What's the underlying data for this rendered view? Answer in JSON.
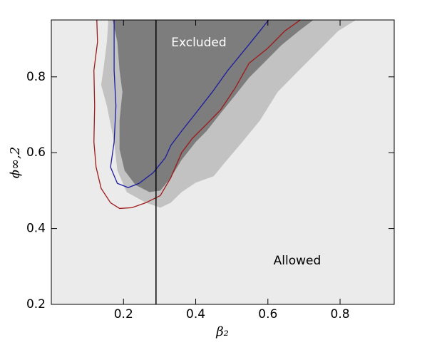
{
  "chart_data": {
    "type": "contour",
    "x_label": "β₂",
    "y_label": "ϕ∞,2",
    "xlim": [
      0,
      0.95
    ],
    "ylim": [
      0.2,
      0.95
    ],
    "xticks": [
      0.2,
      0.4,
      0.6,
      0.8
    ],
    "yticks": [
      0.2,
      0.4,
      0.6,
      0.8
    ],
    "background": "#ebebeb",
    "vline": 0.29,
    "annotations": [
      "Excluded",
      "Allowed"
    ],
    "regions": [
      {
        "color": "#c2c2c2",
        "x": [
          0.158,
          0.154,
          0.144,
          0.138,
          0.154,
          0.174,
          0.183,
          0.209,
          0.262,
          0.302,
          0.331,
          0.361,
          0.4,
          0.45,
          0.479,
          0.529,
          0.578,
          0.627,
          0.686,
          0.746,
          0.795,
          0.844
        ],
        "y": [
          0.95,
          0.892,
          0.817,
          0.779,
          0.723,
          0.628,
          0.553,
          0.496,
          0.468,
          0.455,
          0.468,
          0.496,
          0.521,
          0.538,
          0.572,
          0.628,
          0.685,
          0.76,
          0.817,
          0.874,
          0.921,
          0.95
        ]
      },
      {
        "color": "#7d7d7d",
        "x": [
          0.17,
          0.183,
          0.189,
          0.197,
          0.189,
          0.189,
          0.203,
          0.233,
          0.272,
          0.302,
          0.331,
          0.361,
          0.4,
          0.43,
          0.469,
          0.509,
          0.548,
          0.588,
          0.637,
          0.686,
          0.726
        ],
        "y": [
          0.95,
          0.892,
          0.817,
          0.76,
          0.685,
          0.609,
          0.553,
          0.515,
          0.496,
          0.5,
          0.534,
          0.581,
          0.628,
          0.657,
          0.704,
          0.751,
          0.798,
          0.836,
          0.883,
          0.921,
          0.95
        ]
      }
    ],
    "lines": [
      {
        "color": "#1c1ca0",
        "x": [
          0.174,
          0.174,
          0.174,
          0.179,
          0.174,
          0.164,
          0.183,
          0.213,
          0.243,
          0.282,
          0.316,
          0.331,
          0.361,
          0.4,
          0.446,
          0.489,
          0.538,
          0.578,
          0.602
        ],
        "y": [
          0.95,
          0.892,
          0.817,
          0.723,
          0.628,
          0.562,
          0.519,
          0.508,
          0.519,
          0.547,
          0.587,
          0.619,
          0.657,
          0.704,
          0.76,
          0.817,
          0.874,
          0.921,
          0.95
        ]
      },
      {
        "color": "#a01818",
        "x": [
          0.126,
          0.128,
          0.118,
          0.12,
          0.118,
          0.124,
          0.138,
          0.164,
          0.189,
          0.223,
          0.262,
          0.302,
          0.331,
          0.361,
          0.391,
          0.43,
          0.469,
          0.509,
          0.548,
          0.598,
          0.647,
          0.69
        ],
        "y": [
          0.95,
          0.892,
          0.817,
          0.723,
          0.628,
          0.562,
          0.506,
          0.468,
          0.453,
          0.455,
          0.468,
          0.487,
          0.534,
          0.6,
          0.638,
          0.675,
          0.713,
          0.77,
          0.836,
          0.874,
          0.921,
          0.95
        ]
      }
    ]
  }
}
